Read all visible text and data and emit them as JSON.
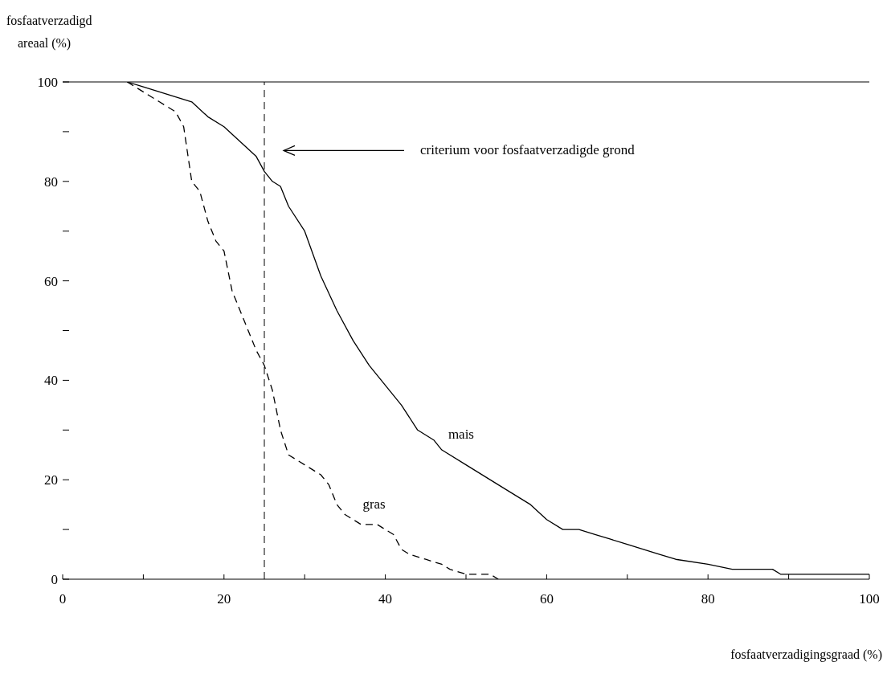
{
  "chart_data": {
    "type": "line",
    "xlabel": "fosfaatverzadigingsgraad (%)",
    "ylabel": "fosfaatverzadigd\nareaal (%)",
    "xlim": [
      0,
      100
    ],
    "ylim": [
      0,
      100
    ],
    "xticks": [
      0,
      {
        "value": 10,
        "label": null
      },
      20,
      {
        "value": 30,
        "label": null
      },
      40,
      {
        "value": 50,
        "label": null
      },
      60,
      {
        "value": 70,
        "label": null
      },
      80,
      {
        "value": 90,
        "label": null
      },
      100
    ],
    "yticks": [
      0,
      {
        "value": 10,
        "label": null
      },
      20,
      {
        "value": 30,
        "label": null
      },
      40,
      {
        "value": 50,
        "label": null
      },
      60,
      {
        "value": 70,
        "label": null
      },
      80,
      {
        "value": 90,
        "label": null
      },
      100
    ],
    "marker": "none",
    "series": [
      {
        "name": "mais",
        "color": "#000000",
        "line_style": "solid",
        "x": [
          8,
          10,
          12,
          14,
          16,
          18,
          20,
          22,
          24,
          25,
          26,
          27,
          28,
          30,
          32,
          34,
          36,
          38,
          40,
          42,
          44,
          46,
          47,
          50,
          55,
          58,
          60,
          62,
          64,
          66,
          68,
          70,
          72,
          74,
          76,
          80,
          83,
          88,
          89,
          100
        ],
        "values": [
          100,
          99,
          98,
          97,
          96,
          93,
          91,
          88,
          85,
          82,
          80,
          79,
          75,
          70,
          61,
          54,
          48,
          43,
          39,
          35,
          30,
          28,
          26,
          23,
          18,
          15,
          12,
          10,
          10,
          9,
          8,
          7,
          6,
          5,
          4,
          3,
          2,
          2,
          1,
          1
        ]
      },
      {
        "name": "gras",
        "color": "#000000",
        "line_style": "dashed",
        "x": [
          8,
          10,
          12,
          14,
          15,
          16,
          17,
          18,
          19,
          20,
          21,
          22,
          23,
          24,
          25,
          26,
          27,
          28,
          30,
          32,
          33,
          34,
          35,
          37,
          39,
          40,
          41,
          42,
          43,
          45,
          47,
          48,
          50,
          53,
          54
        ],
        "values": [
          100,
          98,
          96,
          94,
          91,
          80,
          78,
          72,
          68,
          66,
          58,
          54,
          50,
          46,
          43,
          38,
          30,
          25,
          23,
          21,
          19,
          15,
          13,
          11,
          11,
          10,
          9,
          6,
          5,
          4,
          3,
          2,
          1,
          1,
          0
        ]
      }
    ],
    "annotations": [
      "criterium voor fosfaatverzadigde grond"
    ],
    "ref_lines": [
      {
        "axis": "x",
        "value": 25,
        "line_style": "dashed",
        "color": "#000000"
      }
    ]
  }
}
